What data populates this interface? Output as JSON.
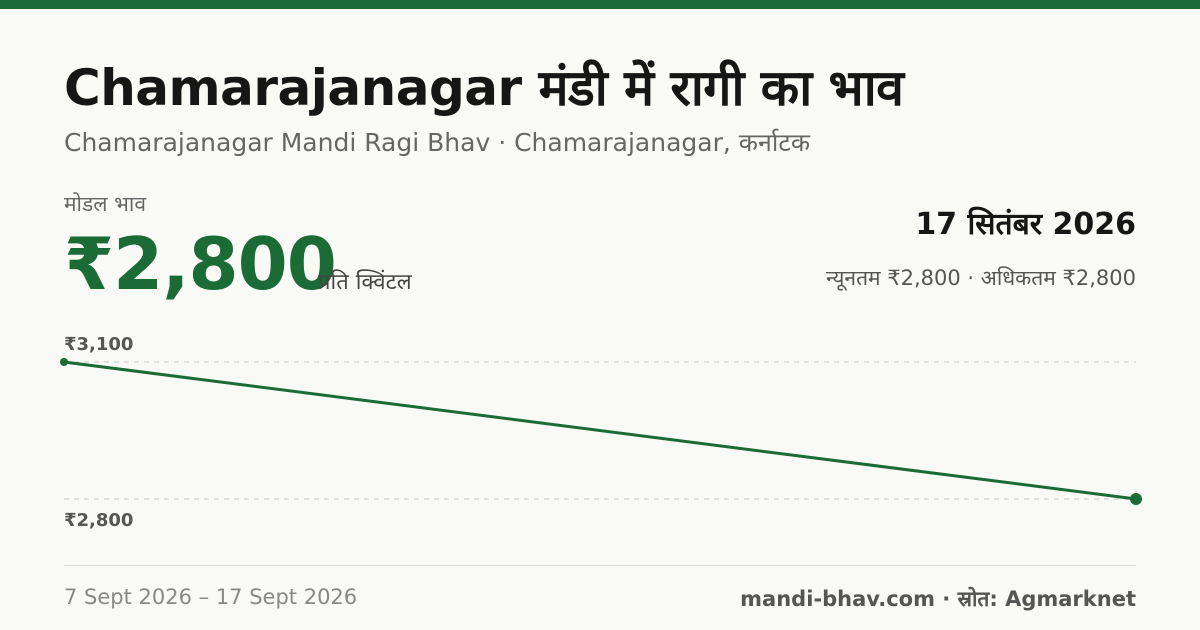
{
  "header": {
    "title": "Chamarajanagar मंडी में रागी का भाव",
    "subtitle": "Chamarajanagar Mandi Ragi Bhav · Chamarajanagar, कर्नाटक"
  },
  "price": {
    "label": "मोडल भाव",
    "value": "₹2,800",
    "unit": "प्रति क्विंटल"
  },
  "summary": {
    "date": "17 सितंबर 2026",
    "minmax": "न्यूनतम ₹2,800 · अधिकतम ₹2,800"
  },
  "footer": {
    "date_range": "7 Sept 2026 – 17 Sept 2026",
    "source": "mandi-bhav.com · स्रोत: Agmarknet"
  },
  "colors": {
    "accent": "#1b6b37",
    "grid": "#c8c8c2"
  },
  "chart_data": {
    "type": "line",
    "x": [
      "7 Sept 2026",
      "17 Sept 2026"
    ],
    "y": [
      3100,
      2800
    ],
    "ylim": [
      2800,
      3100
    ],
    "ytick_labels": [
      "₹3,100",
      "₹2,800"
    ],
    "grid": true
  }
}
